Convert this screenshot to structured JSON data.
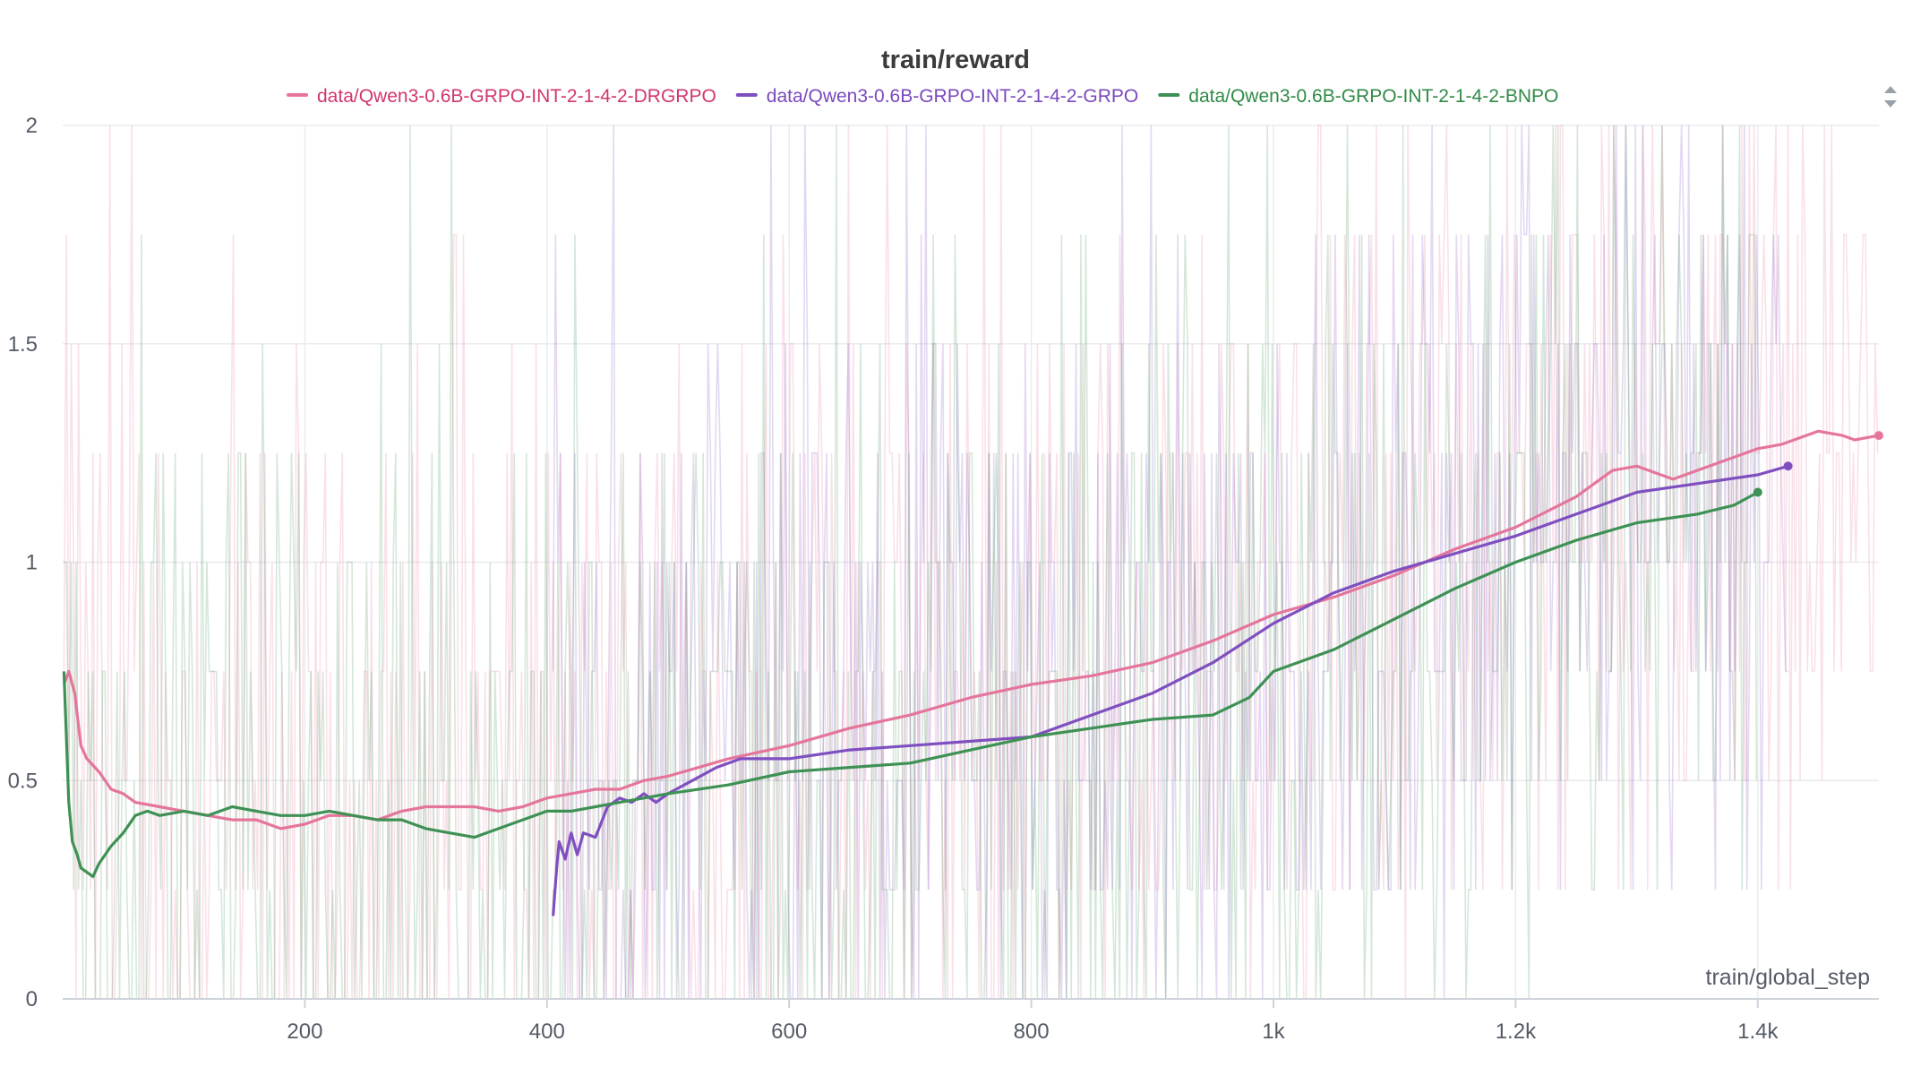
{
  "chart_data": {
    "type": "line",
    "title": "train/reward",
    "xlabel": "train/global_step",
    "ylabel": "",
    "xlim": [
      0,
      1500
    ],
    "ylim": [
      0,
      2
    ],
    "x_ticks": [
      {
        "value": 200,
        "label": "200"
      },
      {
        "value": 400,
        "label": "400"
      },
      {
        "value": 600,
        "label": "600"
      },
      {
        "value": 800,
        "label": "800"
      },
      {
        "value": 1000,
        "label": "1k"
      },
      {
        "value": 1200,
        "label": "1.2k"
      },
      {
        "value": 1400,
        "label": "1.4k"
      }
    ],
    "y_ticks": [
      {
        "value": 0,
        "label": "0"
      },
      {
        "value": 0.5,
        "label": "0.5"
      },
      {
        "value": 1,
        "label": "1"
      },
      {
        "value": 1.5,
        "label": "1.5"
      },
      {
        "value": 2,
        "label": "2"
      }
    ],
    "grid": true,
    "legend_position": "top",
    "series": [
      {
        "name": "data/Qwen3-0.6B-GRPO-INT-2-1-4-2-DRGRPO",
        "color": "#e5759b",
        "legend_text_color": "#d2356f",
        "x": [
          1,
          5,
          10,
          15,
          20,
          30,
          40,
          50,
          60,
          80,
          100,
          120,
          140,
          160,
          180,
          200,
          220,
          240,
          260,
          280,
          300,
          320,
          340,
          360,
          380,
          400,
          420,
          440,
          460,
          480,
          500,
          550,
          600,
          650,
          700,
          750,
          800,
          850,
          900,
          950,
          1000,
          1050,
          1100,
          1150,
          1200,
          1250,
          1280,
          1300,
          1330,
          1350,
          1380,
          1400,
          1420,
          1450,
          1470,
          1480,
          1500
        ],
        "y": [
          0.72,
          0.75,
          0.7,
          0.58,
          0.55,
          0.52,
          0.48,
          0.47,
          0.45,
          0.44,
          0.43,
          0.42,
          0.41,
          0.41,
          0.39,
          0.4,
          0.42,
          0.42,
          0.41,
          0.43,
          0.44,
          0.44,
          0.44,
          0.43,
          0.44,
          0.46,
          0.47,
          0.48,
          0.48,
          0.5,
          0.51,
          0.55,
          0.58,
          0.62,
          0.65,
          0.69,
          0.72,
          0.74,
          0.77,
          0.82,
          0.88,
          0.92,
          0.97,
          1.03,
          1.08,
          1.15,
          1.21,
          1.22,
          1.19,
          1.21,
          1.24,
          1.26,
          1.27,
          1.3,
          1.29,
          1.28,
          1.29
        ]
      },
      {
        "name": "data/Qwen3-0.6B-GRPO-INT-2-1-4-2-GRPO",
        "color": "#7f4fc0",
        "legend_text_color": "#7a49bd",
        "x": [
          405,
          408,
          410,
          415,
          420,
          425,
          430,
          440,
          450,
          460,
          470,
          480,
          490,
          500,
          520,
          540,
          560,
          600,
          650,
          700,
          750,
          800,
          850,
          900,
          950,
          1000,
          1050,
          1100,
          1150,
          1200,
          1250,
          1300,
          1350,
          1400,
          1425
        ],
        "y": [
          0.19,
          0.3,
          0.36,
          0.32,
          0.38,
          0.33,
          0.38,
          0.37,
          0.44,
          0.46,
          0.45,
          0.47,
          0.45,
          0.47,
          0.5,
          0.53,
          0.55,
          0.55,
          0.57,
          0.58,
          0.59,
          0.6,
          0.65,
          0.7,
          0.77,
          0.86,
          0.93,
          0.98,
          1.02,
          1.06,
          1.11,
          1.16,
          1.18,
          1.2,
          1.22
        ]
      },
      {
        "name": "data/Qwen3-0.6B-GRPO-INT-2-1-4-2-BNPO",
        "color": "#3e9154",
        "legend_text_color": "#2f8a47",
        "x": [
          1,
          3,
          5,
          8,
          12,
          15,
          20,
          25,
          30,
          40,
          50,
          60,
          70,
          80,
          100,
          120,
          140,
          160,
          180,
          200,
          220,
          240,
          260,
          280,
          300,
          320,
          340,
          360,
          380,
          400,
          420,
          440,
          460,
          480,
          500,
          550,
          600,
          650,
          700,
          750,
          800,
          850,
          900,
          950,
          980,
          1000,
          1050,
          1100,
          1150,
          1200,
          1250,
          1300,
          1350,
          1380,
          1400
        ],
        "y": [
          0.75,
          0.6,
          0.45,
          0.36,
          0.33,
          0.3,
          0.29,
          0.28,
          0.31,
          0.35,
          0.38,
          0.42,
          0.43,
          0.42,
          0.43,
          0.42,
          0.44,
          0.43,
          0.42,
          0.42,
          0.43,
          0.42,
          0.41,
          0.41,
          0.39,
          0.38,
          0.37,
          0.39,
          0.41,
          0.43,
          0.43,
          0.44,
          0.45,
          0.46,
          0.47,
          0.49,
          0.52,
          0.53,
          0.54,
          0.57,
          0.6,
          0.62,
          0.64,
          0.65,
          0.69,
          0.75,
          0.8,
          0.87,
          0.94,
          1.0,
          1.05,
          1.09,
          1.11,
          1.13,
          1.16
        ]
      }
    ]
  }
}
